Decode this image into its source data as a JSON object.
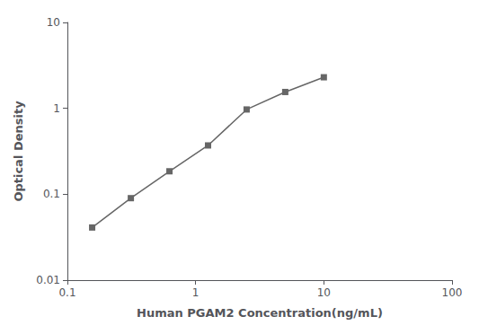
{
  "chart_data": {
    "type": "line",
    "x": [
      0.156,
      0.3125,
      0.625,
      1.25,
      2.5,
      5,
      10
    ],
    "values": [
      0.041,
      0.09,
      0.185,
      0.37,
      0.97,
      1.55,
      2.3
    ],
    "xlabel": "Human PGAM2 Concentration(ng/mL)",
    "ylabel": "Optical Density",
    "xlim": [
      0.1,
      100
    ],
    "ylim": [
      0.01,
      10
    ],
    "xticks": [
      0.1,
      1,
      10,
      100
    ],
    "yticks": [
      0.01,
      0.1,
      1,
      10
    ],
    "log": true,
    "grid": false,
    "color": "#666666",
    "marker": "square"
  }
}
